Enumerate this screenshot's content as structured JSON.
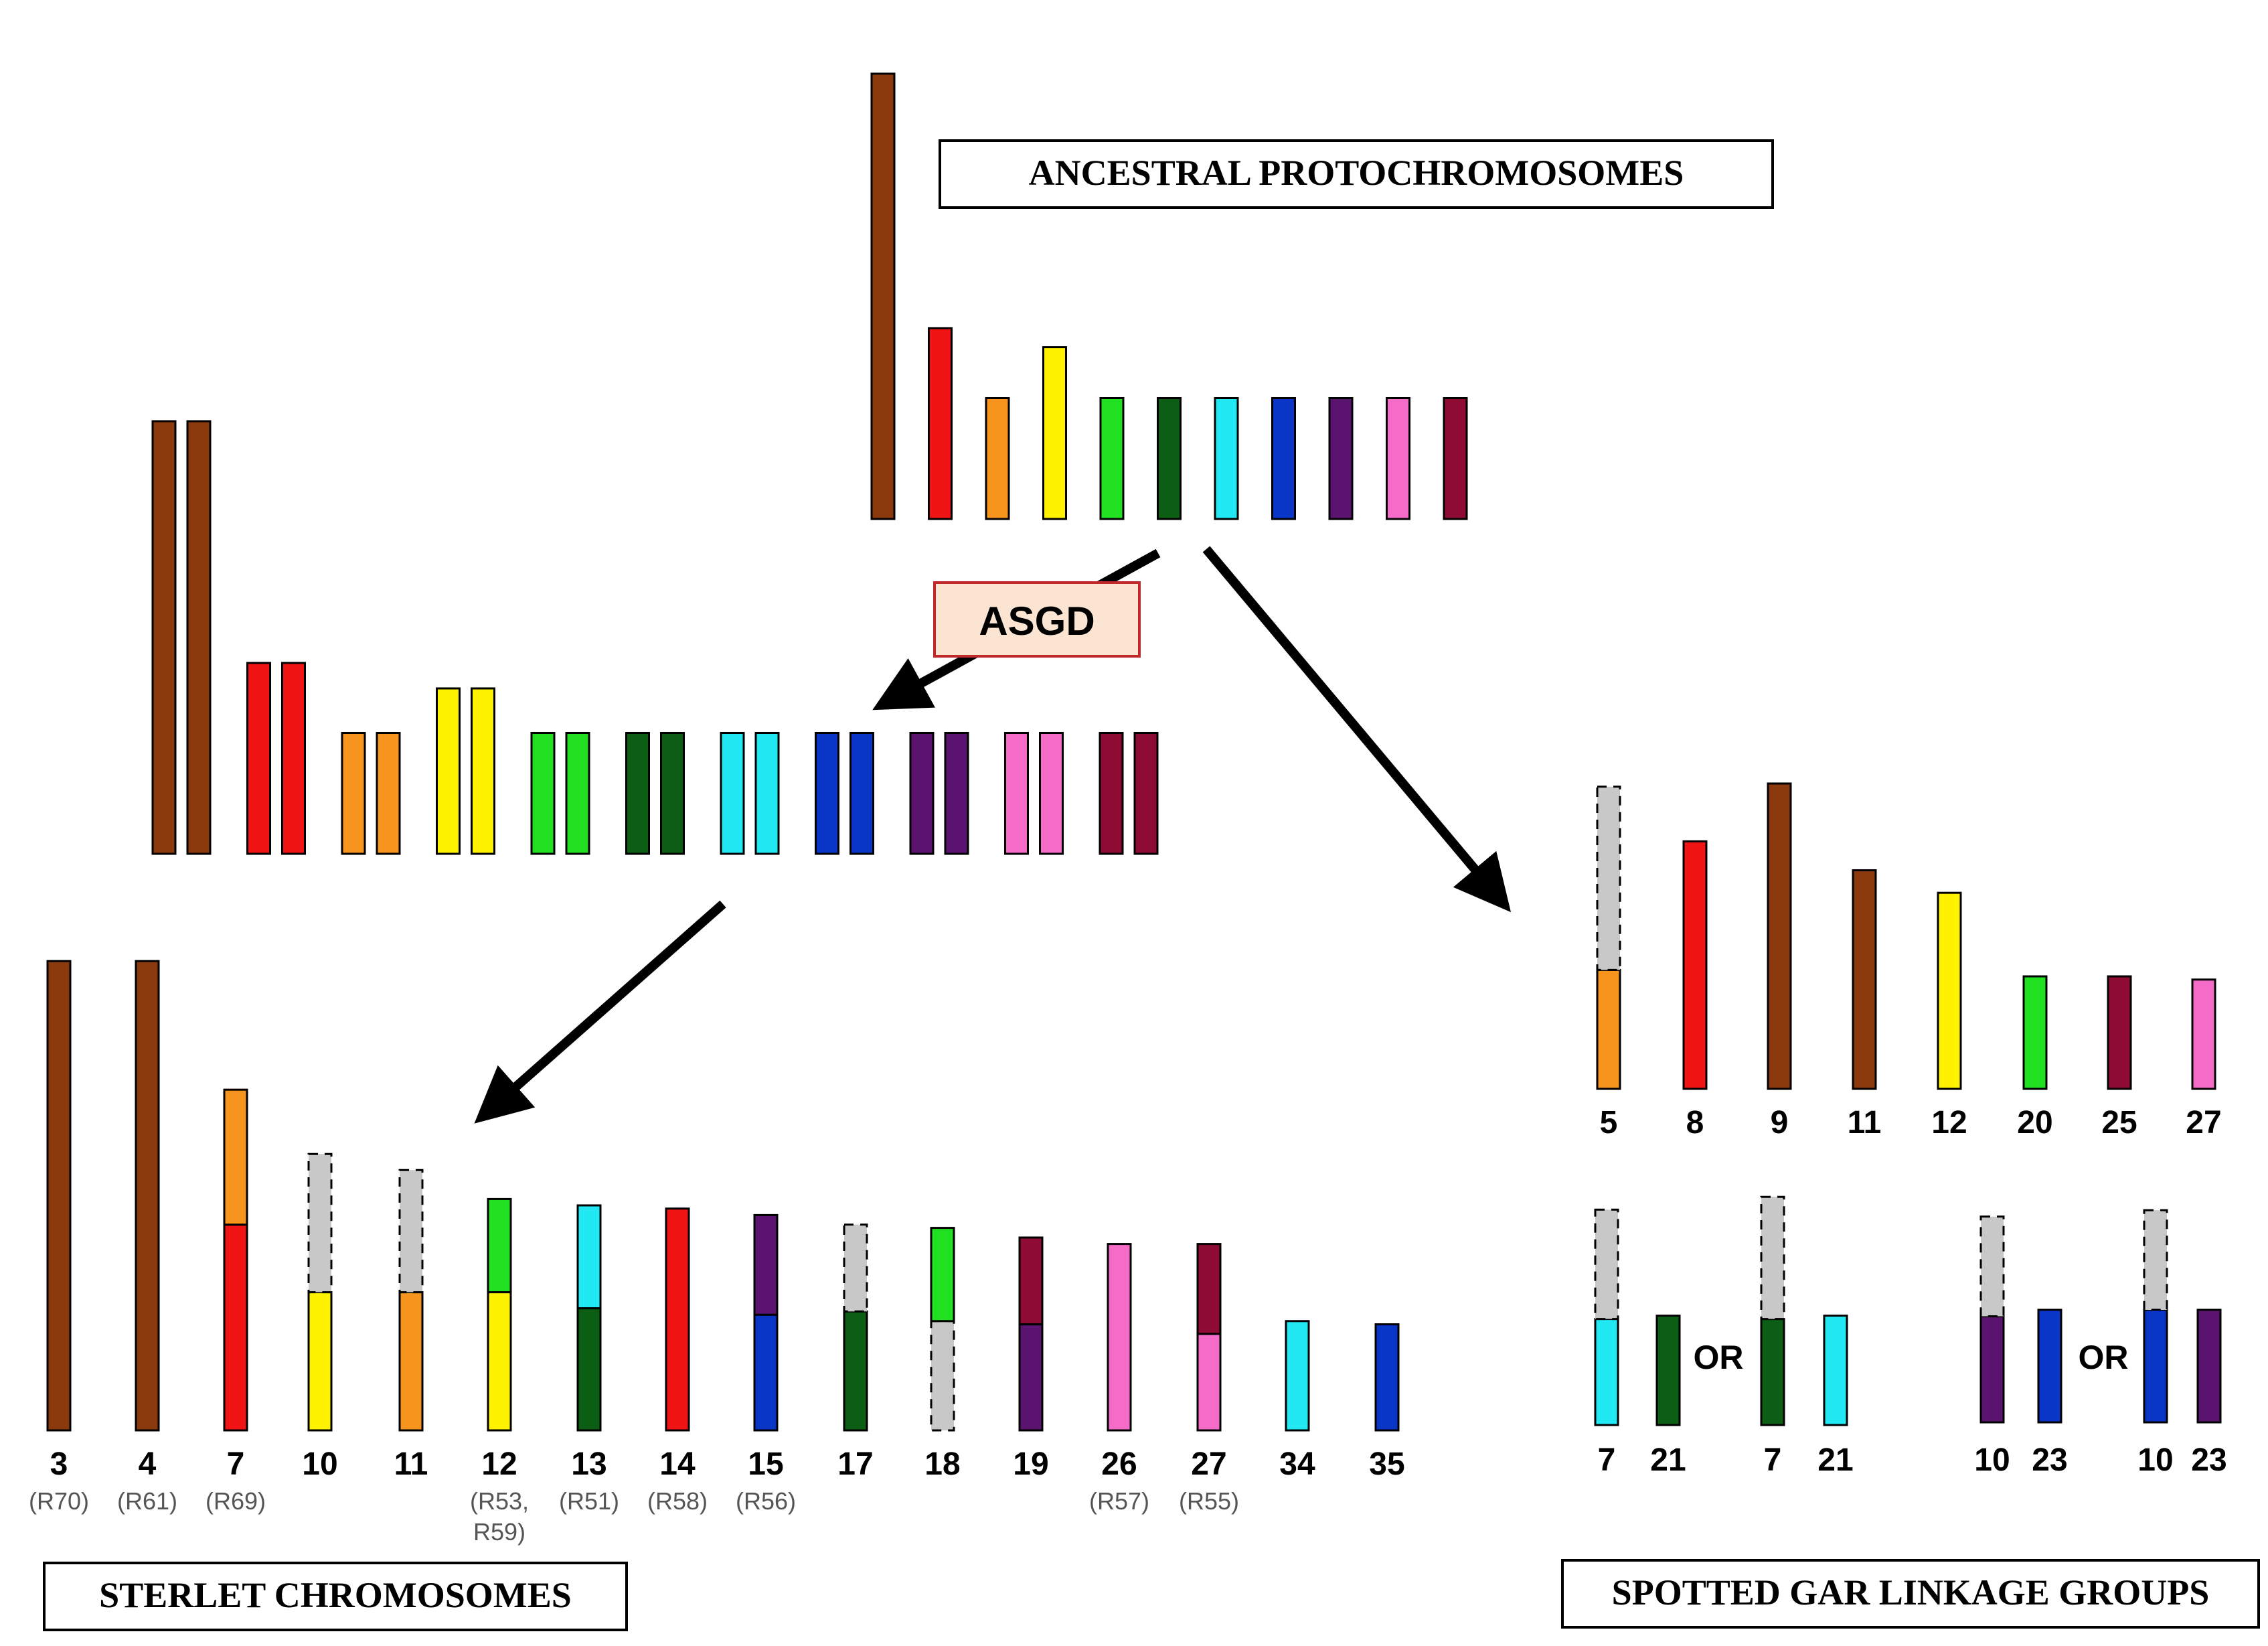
{
  "title_box": "ANCESTRAL PROTOCHROMOSOMES",
  "event_label": "ASGD",
  "sterlet_box": "STERLET CHROMOSOMES",
  "gar_box": "SPOTTED GAR LINKAGE GROUPS",
  "or_label": "OR",
  "colors": {
    "brown": "#8B3A0E",
    "red": "#F01414",
    "orange": "#F7941D",
    "yellow": "#FFF200",
    "green": "#22E022",
    "darkgreen": "#0B5E14",
    "cyan": "#22E8F4",
    "blue": "#0A36C8",
    "purple": "#5A1470",
    "pink": "#F46CC8",
    "maroon": "#8E0C34",
    "gray": "#C8C8C8",
    "box_fill": "#FBE4D2",
    "box_border": "#C0282A"
  },
  "ancestral": [
    {
      "color": "brown",
      "length": 7
    },
    {
      "color": "red",
      "length": 3
    },
    {
      "color": "orange",
      "length": 1.9
    },
    {
      "color": "yellow",
      "length": 2.7
    },
    {
      "color": "green",
      "length": 1.9
    },
    {
      "color": "darkgreen",
      "length": 1.9
    },
    {
      "color": "cyan",
      "length": 1.9
    },
    {
      "color": "blue",
      "length": 1.9
    },
    {
      "color": "purple",
      "length": 1.9
    },
    {
      "color": "pink",
      "length": 1.9
    },
    {
      "color": "maroon",
      "length": 1.9
    }
  ],
  "duplicated": [
    {
      "color": "brown",
      "length": 6.8
    },
    {
      "color": "red",
      "length": 3
    },
    {
      "color": "orange",
      "length": 1.9
    },
    {
      "color": "yellow",
      "length": 2.6
    },
    {
      "color": "green",
      "length": 1.9
    },
    {
      "color": "darkgreen",
      "length": 1.9
    },
    {
      "color": "cyan",
      "length": 1.9
    },
    {
      "color": "blue",
      "length": 1.9
    },
    {
      "color": "purple",
      "length": 1.9
    },
    {
      "color": "pink",
      "length": 1.9
    },
    {
      "color": "maroon",
      "length": 1.9
    }
  ],
  "sterlet": [
    {
      "num": "3",
      "sub": "(R70)",
      "segments": [
        {
          "color": "brown",
          "size": 7.3
        }
      ]
    },
    {
      "num": "4",
      "sub": "(R61)",
      "segments": [
        {
          "color": "brown",
          "size": 7.3
        }
      ]
    },
    {
      "num": "7",
      "sub": "(R69)",
      "segments": [
        {
          "color": "red",
          "size": 3.2
        },
        {
          "color": "orange",
          "size": 2.1
        }
      ]
    },
    {
      "num": "10",
      "sub": "",
      "segments": [
        {
          "color": "yellow",
          "size": 2.15
        },
        {
          "color": "gray",
          "size": 2.15
        }
      ]
    },
    {
      "num": "11",
      "sub": "",
      "segments": [
        {
          "color": "orange",
          "size": 2.15
        },
        {
          "color": "gray",
          "size": 1.9
        }
      ]
    },
    {
      "num": "12",
      "sub": "(R53,",
      "sub2": "R59)",
      "segments": [
        {
          "color": "yellow",
          "size": 2.15
        },
        {
          "color": "green",
          "size": 1.45
        }
      ]
    },
    {
      "num": "13",
      "sub": "(R51)",
      "segments": [
        {
          "color": "darkgreen",
          "size": 1.9
        },
        {
          "color": "cyan",
          "size": 1.6
        }
      ]
    },
    {
      "num": "14",
      "sub": "(R58)",
      "segments": [
        {
          "color": "red",
          "size": 3.45
        }
      ]
    },
    {
      "num": "15",
      "sub": "(R56)",
      "segments": [
        {
          "color": "blue",
          "size": 1.8
        },
        {
          "color": "purple",
          "size": 1.55
        }
      ]
    },
    {
      "num": "17",
      "sub": "",
      "segments": [
        {
          "color": "darkgreen",
          "size": 1.85
        },
        {
          "color": "gray",
          "size": 1.35
        }
      ]
    },
    {
      "num": "18",
      "sub": "",
      "segments": [
        {
          "color": "gray",
          "size": 1.7
        },
        {
          "color": "green",
          "size": 1.45
        }
      ]
    },
    {
      "num": "19",
      "sub": "",
      "segments": [
        {
          "color": "purple",
          "size": 1.65
        },
        {
          "color": "maroon",
          "size": 1.35
        }
      ]
    },
    {
      "num": "26",
      "sub": "(R57)",
      "segments": [
        {
          "color": "pink",
          "size": 2.9
        }
      ]
    },
    {
      "num": "27",
      "sub": "(R55)",
      "segments": [
        {
          "color": "pink",
          "size": 1.5
        },
        {
          "color": "maroon",
          "size": 1.4
        }
      ]
    },
    {
      "num": "34",
      "sub": "",
      "segments": [
        {
          "color": "cyan",
          "size": 1.7
        }
      ]
    },
    {
      "num": "35",
      "sub": "",
      "segments": [
        {
          "color": "blue",
          "size": 1.65
        }
      ]
    }
  ],
  "gar_top": [
    {
      "num": "5",
      "segments": [
        {
          "color": "orange",
          "size": 1.85
        },
        {
          "color": "gray",
          "size": 2.85
        }
      ]
    },
    {
      "num": "8",
      "segments": [
        {
          "color": "red",
          "size": 3.85
        }
      ]
    },
    {
      "num": "9",
      "segments": [
        {
          "color": "brown",
          "size": 4.75
        }
      ]
    },
    {
      "num": "11",
      "segments": [
        {
          "color": "brown",
          "size": 3.4
        }
      ]
    },
    {
      "num": "12",
      "segments": [
        {
          "color": "yellow",
          "size": 3.05
        }
      ]
    },
    {
      "num": "20",
      "segments": [
        {
          "color": "green",
          "size": 1.75
        }
      ]
    },
    {
      "num": "25",
      "segments": [
        {
          "color": "maroon",
          "size": 1.75
        }
      ]
    },
    {
      "num": "27",
      "segments": [
        {
          "color": "pink",
          "size": 1.7
        }
      ]
    }
  ],
  "gar_bottom_left": [
    {
      "num": "7",
      "segments": [
        {
          "color": "cyan",
          "size": 1.65
        },
        {
          "color": "gray",
          "size": 1.7
        }
      ]
    },
    {
      "num": "21",
      "segments": [
        {
          "color": "darkgreen",
          "size": 1.7
        }
      ]
    },
    {
      "num": "7",
      "segments": [
        {
          "color": "darkgreen",
          "size": 1.65
        },
        {
          "color": "gray",
          "size": 1.9
        }
      ]
    },
    {
      "num": "21",
      "segments": [
        {
          "color": "cyan",
          "size": 1.7
        }
      ]
    }
  ],
  "gar_bottom_right": [
    {
      "num": "10",
      "segments": [
        {
          "color": "purple",
          "size": 1.65
        },
        {
          "color": "gray",
          "size": 1.55
        }
      ]
    },
    {
      "num": "23",
      "segments": [
        {
          "color": "blue",
          "size": 1.75
        }
      ]
    },
    {
      "num": "10",
      "segments": [
        {
          "color": "blue",
          "size": 1.75
        },
        {
          "color": "gray",
          "size": 1.55
        }
      ]
    },
    {
      "num": "23",
      "segments": [
        {
          "color": "purple",
          "size": 1.75
        }
      ]
    }
  ]
}
